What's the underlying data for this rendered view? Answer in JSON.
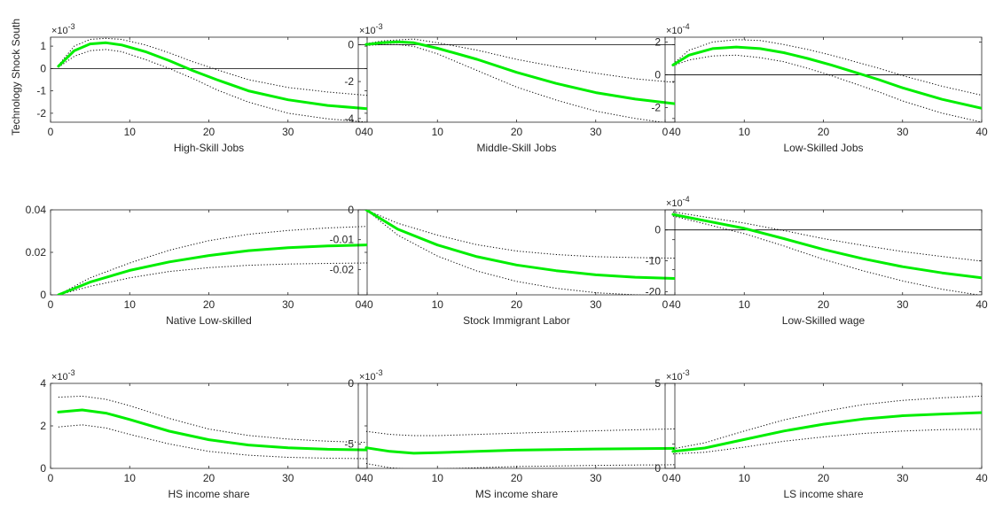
{
  "figure": {
    "row_label": "Technology Shock South"
  },
  "colors": {
    "median": "#00ee00",
    "bands": "#000000",
    "zero_line": "#000000",
    "axes": "#262626"
  },
  "chart_data": [
    {
      "type": "line",
      "xlabel": "High-Skill Jobs",
      "exponent": "-3",
      "xlim": [
        0,
        40
      ],
      "ylim": [
        -2.4,
        1.4
      ],
      "xticks": [
        "0",
        "10",
        "20",
        "30",
        "40"
      ],
      "yticks": [
        "-2",
        "-1",
        "0",
        "1"
      ],
      "zero_line": true,
      "median": {
        "x": [
          1,
          3,
          5,
          7,
          9,
          12,
          15,
          18,
          21,
          25,
          30,
          35,
          40
        ],
        "y": [
          0.1,
          0.8,
          1.1,
          1.15,
          1.05,
          0.75,
          0.35,
          -0.1,
          -0.5,
          -1.0,
          -1.4,
          -1.65,
          -1.8
        ]
      },
      "lower": {
        "x": [
          1,
          3,
          5,
          7,
          9,
          12,
          15,
          18,
          21,
          25,
          30,
          35,
          40
        ],
        "y": [
          0.05,
          0.55,
          0.8,
          0.85,
          0.75,
          0.4,
          0,
          -0.45,
          -0.95,
          -1.5,
          -2.0,
          -2.25,
          -2.4
        ]
      },
      "upper": {
        "x": [
          1,
          3,
          5,
          7,
          9,
          12,
          15,
          18,
          21,
          25,
          30,
          35,
          40
        ],
        "y": [
          0.15,
          1.0,
          1.3,
          1.35,
          1.3,
          1.05,
          0.7,
          0.3,
          -0.05,
          -0.5,
          -0.85,
          -1.05,
          -1.2
        ]
      }
    },
    {
      "type": "line",
      "xlabel": "Middle-Skill Jobs",
      "exponent": "-3",
      "xlim": [
        0,
        40
      ],
      "ylim": [
        -4.2,
        0.4
      ],
      "xticks": [
        "0",
        "10",
        "20",
        "30",
        "40"
      ],
      "yticks": [
        "-4",
        "-2",
        "0"
      ],
      "zero_line": true,
      "median": {
        "x": [
          1,
          3,
          5,
          7,
          10,
          15,
          20,
          25,
          30,
          35,
          40
        ],
        "y": [
          0,
          0.1,
          0.15,
          0.1,
          -0.2,
          -0.8,
          -1.5,
          -2.1,
          -2.6,
          -2.95,
          -3.2
        ]
      },
      "lower": {
        "x": [
          1,
          3,
          5,
          7,
          10,
          15,
          20,
          25,
          30,
          35,
          40
        ],
        "y": [
          -0.05,
          0,
          0,
          -0.1,
          -0.5,
          -1.4,
          -2.3,
          -3.0,
          -3.6,
          -4.0,
          -4.3
        ]
      },
      "upper": {
        "x": [
          1,
          3,
          5,
          7,
          10,
          15,
          20,
          25,
          30,
          35,
          40
        ],
        "y": [
          0.05,
          0.2,
          0.25,
          0.3,
          0.1,
          -0.3,
          -0.8,
          -1.2,
          -1.55,
          -1.85,
          -2.05
        ]
      }
    },
    {
      "type": "line",
      "xlabel": "Low-Skilled Jobs",
      "exponent": "-4",
      "xlim": [
        0,
        40
      ],
      "ylim": [
        -2.9,
        2.3
      ],
      "xticks": [
        "0",
        "10",
        "20",
        "30",
        "40"
      ],
      "yticks": [
        "-2",
        "0",
        "2"
      ],
      "zero_line": true,
      "median": {
        "x": [
          1,
          3,
          6,
          9,
          12,
          15,
          18,
          21,
          24,
          27,
          30,
          35,
          40
        ],
        "y": [
          0.6,
          1.2,
          1.6,
          1.7,
          1.6,
          1.35,
          1.0,
          0.6,
          0.15,
          -0.3,
          -0.8,
          -1.5,
          -2.05
        ]
      },
      "lower": {
        "x": [
          1,
          3,
          6,
          9,
          12,
          15,
          18,
          21,
          24,
          27,
          30,
          35,
          40
        ],
        "y": [
          0.55,
          0.9,
          1.15,
          1.2,
          1.05,
          0.8,
          0.4,
          -0.05,
          -0.55,
          -1.05,
          -1.6,
          -2.35,
          -2.9
        ]
      },
      "upper": {
        "x": [
          1,
          3,
          6,
          9,
          12,
          15,
          18,
          21,
          24,
          27,
          30,
          35,
          40
        ],
        "y": [
          0.65,
          1.5,
          2.0,
          2.15,
          2.1,
          1.85,
          1.55,
          1.2,
          0.8,
          0.4,
          -0.05,
          -0.7,
          -1.25
        ]
      }
    },
    {
      "type": "line",
      "xlabel": "Native Low-skilled",
      "exponent": "",
      "xlim": [
        0,
        40
      ],
      "ylim": [
        0,
        0.04
      ],
      "xticks": [
        "0",
        "10",
        "20",
        "30",
        "40"
      ],
      "yticks": [
        "0",
        "0.02",
        "0.04"
      ],
      "zero_line": false,
      "median": {
        "x": [
          1,
          5,
          10,
          15,
          20,
          25,
          30,
          35,
          40
        ],
        "y": [
          0,
          0.006,
          0.0115,
          0.0155,
          0.0185,
          0.0208,
          0.0222,
          0.023,
          0.0235
        ]
      },
      "lower": {
        "x": [
          1,
          5,
          10,
          15,
          20,
          25,
          30,
          35,
          40
        ],
        "y": [
          0,
          0.004,
          0.008,
          0.011,
          0.0128,
          0.0139,
          0.0145,
          0.0148,
          0.015
        ]
      },
      "upper": {
        "x": [
          1,
          5,
          10,
          15,
          20,
          25,
          30,
          35,
          40
        ],
        "y": [
          0,
          0.008,
          0.015,
          0.021,
          0.0255,
          0.0285,
          0.0303,
          0.0315,
          0.0322
        ]
      }
    },
    {
      "type": "line",
      "xlabel": "Stock Immigrant Labor",
      "exponent": "",
      "xlim": [
        0,
        40
      ],
      "ylim": [
        -0.0285,
        0
      ],
      "xticks": [
        "0",
        "10",
        "20",
        "30",
        "40"
      ],
      "yticks": [
        "-0.02",
        "-0.01",
        "0"
      ],
      "zero_line": false,
      "median": {
        "x": [
          1,
          5,
          10,
          15,
          20,
          25,
          30,
          35,
          40
        ],
        "y": [
          0,
          -0.0065,
          -0.0118,
          -0.0157,
          -0.0185,
          -0.0204,
          -0.0218,
          -0.0226,
          -0.023
        ]
      },
      "lower": {
        "x": [
          1,
          5,
          10,
          15,
          20,
          25,
          30,
          35,
          40
        ],
        "y": [
          0,
          -0.0085,
          -0.0155,
          -0.0205,
          -0.024,
          -0.0263,
          -0.0278,
          -0.0285,
          -0.029
        ]
      },
      "upper": {
        "x": [
          1,
          5,
          10,
          15,
          20,
          25,
          30,
          35,
          40
        ],
        "y": [
          0,
          -0.0045,
          -0.0085,
          -0.0117,
          -0.0138,
          -0.015,
          -0.0157,
          -0.016,
          -0.0162
        ]
      }
    },
    {
      "type": "line",
      "xlabel": "Low-Skilled wage",
      "exponent": "-4",
      "xlim": [
        0,
        40
      ],
      "ylim": [
        -21,
        6.5
      ],
      "xticks": [
        "0",
        "10",
        "20",
        "30",
        "40"
      ],
      "yticks": [
        "-20",
        "-10",
        "0"
      ],
      "zero_line": true,
      "median": {
        "x": [
          1,
          5,
          10,
          15,
          20,
          25,
          30,
          35,
          40
        ],
        "y": [
          5,
          3,
          0.5,
          -2.8,
          -6.3,
          -9.3,
          -11.9,
          -13.9,
          -15.5
        ]
      },
      "lower": {
        "x": [
          1,
          5,
          10,
          15,
          20,
          25,
          30,
          35,
          40
        ],
        "y": [
          4.5,
          2,
          -1.2,
          -5.2,
          -9.5,
          -13.2,
          -16.5,
          -19.2,
          -21.2
        ]
      },
      "upper": {
        "x": [
          1,
          5,
          10,
          15,
          20,
          25,
          30,
          35,
          40
        ],
        "y": [
          5.8,
          4.2,
          2.2,
          -0.2,
          -2.8,
          -5.0,
          -7.0,
          -8.6,
          -10.1
        ]
      }
    },
    {
      "type": "line",
      "xlabel": "HS income share",
      "exponent": "-3",
      "xlim": [
        0,
        40
      ],
      "ylim": [
        0,
        4
      ],
      "xticks": [
        "0",
        "10",
        "20",
        "30",
        "40"
      ],
      "yticks": [
        "0",
        "2",
        "4"
      ],
      "zero_line": false,
      "median": {
        "x": [
          1,
          4,
          7,
          10,
          15,
          20,
          25,
          30,
          35,
          40
        ],
        "y": [
          2.65,
          2.75,
          2.6,
          2.3,
          1.75,
          1.35,
          1.1,
          0.97,
          0.9,
          0.87
        ]
      },
      "lower": {
        "x": [
          1,
          4,
          7,
          10,
          15,
          20,
          25,
          30,
          35,
          40
        ],
        "y": [
          1.95,
          2.05,
          1.9,
          1.6,
          1.15,
          0.8,
          0.62,
          0.52,
          0.48,
          0.46
        ]
      },
      "upper": {
        "x": [
          1,
          4,
          7,
          10,
          15,
          20,
          25,
          30,
          35,
          40
        ],
        "y": [
          3.35,
          3.4,
          3.25,
          2.95,
          2.35,
          1.85,
          1.55,
          1.38,
          1.28,
          1.22
        ]
      }
    },
    {
      "type": "line",
      "xlabel": "MS income share",
      "exponent": "-3",
      "xlim": [
        0,
        40
      ],
      "ylim": [
        -7,
        0
      ],
      "xticks": [
        "0",
        "10",
        "20",
        "30",
        "40"
      ],
      "yticks": [
        "-5",
        "0"
      ],
      "zero_line": false,
      "median": {
        "x": [
          1,
          4,
          7,
          10,
          15,
          20,
          25,
          30,
          35,
          40
        ],
        "y": [
          -5.3,
          -5.6,
          -5.75,
          -5.7,
          -5.6,
          -5.5,
          -5.45,
          -5.4,
          -5.38,
          -5.35
        ]
      },
      "lower": {
        "x": [
          1,
          4,
          7,
          10,
          15,
          20,
          25,
          30,
          35,
          40
        ],
        "y": [
          -6.6,
          -6.95,
          -7.1,
          -7.05,
          -6.95,
          -6.85,
          -6.8,
          -6.75,
          -6.72,
          -6.7
        ]
      },
      "upper": {
        "x": [
          1,
          4,
          7,
          10,
          15,
          20,
          25,
          30,
          35,
          40
        ],
        "y": [
          -3.95,
          -4.2,
          -4.3,
          -4.3,
          -4.2,
          -4.1,
          -4.0,
          -3.9,
          -3.82,
          -3.75
        ]
      }
    },
    {
      "type": "line",
      "xlabel": "LS income share",
      "exponent": "-3",
      "xlim": [
        0,
        40
      ],
      "ylim": [
        0,
        5
      ],
      "xticks": [
        "0",
        "10",
        "20",
        "30",
        "40"
      ],
      "yticks": [
        "0",
        "5"
      ],
      "zero_line": false,
      "median": {
        "x": [
          1,
          5,
          10,
          15,
          20,
          25,
          30,
          35,
          40
        ],
        "y": [
          1.0,
          1.2,
          1.7,
          2.2,
          2.6,
          2.9,
          3.1,
          3.2,
          3.28
        ]
      },
      "lower": {
        "x": [
          1,
          5,
          10,
          15,
          20,
          25,
          30,
          35,
          40
        ],
        "y": [
          0.85,
          0.95,
          1.25,
          1.6,
          1.85,
          2.05,
          2.2,
          2.28,
          2.3
        ]
      },
      "upper": {
        "x": [
          1,
          5,
          10,
          15,
          20,
          25,
          30,
          35,
          40
        ],
        "y": [
          1.15,
          1.5,
          2.2,
          2.85,
          3.35,
          3.75,
          4.0,
          4.15,
          4.25
        ]
      }
    }
  ]
}
